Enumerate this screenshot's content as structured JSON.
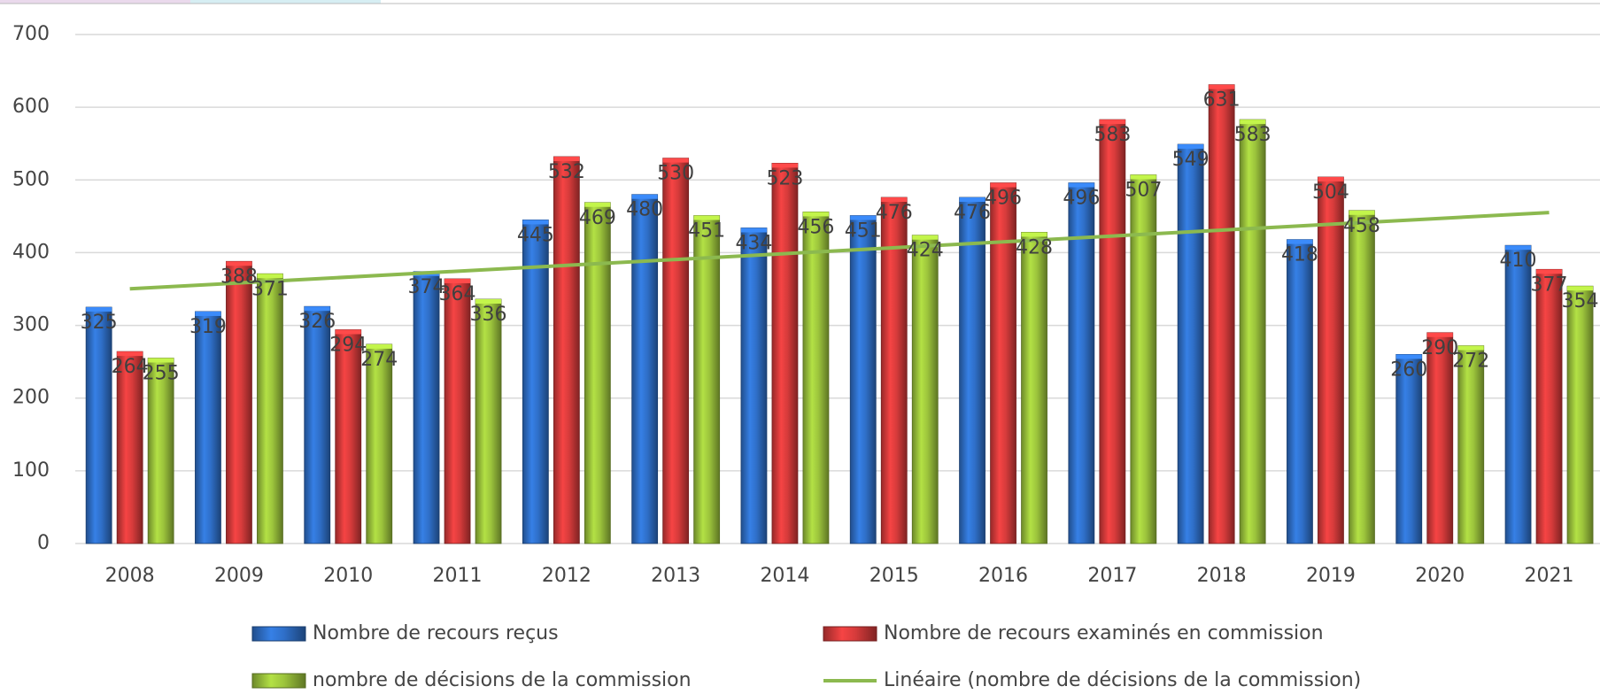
{
  "chart_data": {
    "type": "bar",
    "categories": [
      "2008",
      "2009",
      "2010",
      "2011",
      "2012",
      "2013",
      "2014",
      "2015",
      "2016",
      "2017",
      "2018",
      "2019",
      "2020",
      "2021"
    ],
    "series": [
      {
        "name": "Nombre de recours reçus",
        "color": "#2f6fc8",
        "values": [
          325,
          319,
          326,
          374,
          445,
          480,
          434,
          451,
          476,
          496,
          549,
          418,
          260,
          410
        ]
      },
      {
        "name": "Nombre de recours examinés en commission",
        "color": "#d63b3b",
        "values": [
          264,
          388,
          294,
          364,
          532,
          530,
          523,
          476,
          496,
          583,
          631,
          504,
          290,
          377
        ]
      },
      {
        "name": "nombre de décisions de la commission",
        "color": "#9cc43c",
        "values": [
          255,
          371,
          274,
          336,
          469,
          451,
          456,
          424,
          428,
          507,
          583,
          458,
          272,
          354
        ]
      }
    ],
    "trendline": {
      "name": "Linéaire (nombre de décisions de la commission)",
      "color": "#8cb94f",
      "type": "linear",
      "series": 2
    },
    "ylim": [
      0,
      700
    ],
    "yticks": [
      0,
      100,
      200,
      300,
      400,
      500,
      600,
      700
    ],
    "grid": true
  }
}
